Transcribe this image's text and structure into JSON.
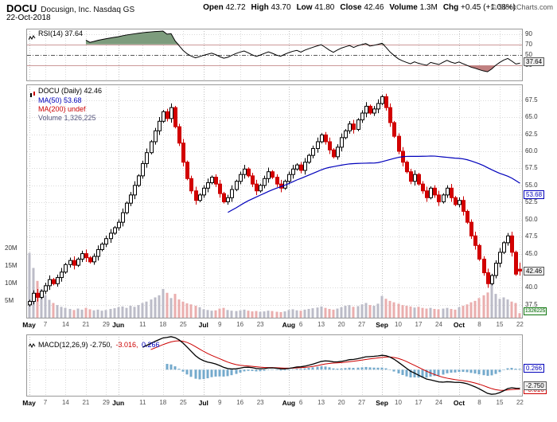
{
  "header": {
    "symbol": "DOCU",
    "company": "Docusign, Inc. Nasdaq GS",
    "date": "22-Oct-2018",
    "credit": "© StockCharts.com",
    "quote": [
      {
        "label": "Open",
        "value": "42.72"
      },
      {
        "label": "High",
        "value": "43.70"
      },
      {
        "label": "Low",
        "value": "41.80"
      },
      {
        "label": "Close",
        "value": "42.46"
      },
      {
        "label": "Volume",
        "value": "1.3M"
      },
      {
        "label": "Chg",
        "value": "+0.45 (+1.08%)"
      }
    ]
  },
  "rsi_panel": {
    "label": "RSI(14) 37.64",
    "ticks": [
      "90",
      "70",
      "50",
      "30"
    ],
    "tick_values": [
      90,
      70,
      50,
      30
    ],
    "tag": {
      "text": "37.64",
      "value": 37.64
    }
  },
  "main_panel": {
    "legend": {
      "symbol_line": "DOCU (Daily) 42.46",
      "ma50": "MA(50) 53.68",
      "ma200": "MA(200) undef",
      "volume": "Volume 1,326,225"
    },
    "price_ticks": [
      "67.5",
      "65.0",
      "62.5",
      "60.0",
      "57.5",
      "55.0",
      "52.5",
      "50.0",
      "47.5",
      "45.0",
      "40.0",
      "37.5"
    ],
    "price_tick_values": [
      67.5,
      65.0,
      62.5,
      60.0,
      57.5,
      55.0,
      52.5,
      50.0,
      47.5,
      45.0,
      40.0,
      37.5
    ],
    "volume_ticks": [
      "20M",
      "15M",
      "10M",
      "5M"
    ],
    "volume_tick_values": [
      20,
      15,
      10,
      5
    ],
    "tags": {
      "ma50": {
        "text": "53.68",
        "value": 53.68
      },
      "close": {
        "text": "42.46",
        "value": 42.46
      },
      "volume": {
        "text": "1326225",
        "value_m": 1.326
      }
    }
  },
  "macd_panel": {
    "label_parts": [
      {
        "text": "MACD(12,26,9) -2.750,",
        "color": "#000000"
      },
      {
        "text": "-3.016,",
        "color": "#cc0000"
      },
      {
        "text": "0.266",
        "color": "#0000bb"
      }
    ],
    "tags": {
      "hist": {
        "text": "0.266",
        "value": 0.266
      },
      "macd": {
        "text": "-2.750",
        "value": -2.75
      },
      "signal": {
        "text": "-3.016",
        "value": -3.016
      }
    }
  },
  "x_axis": {
    "ticks": [
      {
        "label": "May",
        "index": 0,
        "month": true
      },
      {
        "label": "7",
        "index": 4
      },
      {
        "label": "14",
        "index": 9
      },
      {
        "label": "21",
        "index": 14
      },
      {
        "label": "29",
        "index": 19
      },
      {
        "label": "Jun",
        "index": 22,
        "month": true
      },
      {
        "label": "11",
        "index": 28
      },
      {
        "label": "18",
        "index": 33
      },
      {
        "label": "25",
        "index": 38
      },
      {
        "label": "Jul",
        "index": 43,
        "month": true
      },
      {
        "label": "9",
        "index": 47
      },
      {
        "label": "16",
        "index": 52
      },
      {
        "label": "23",
        "index": 57
      },
      {
        "label": "Aug",
        "index": 64,
        "month": true
      },
      {
        "label": "6",
        "index": 67
      },
      {
        "label": "13",
        "index": 72
      },
      {
        "label": "20",
        "index": 77
      },
      {
        "label": "27",
        "index": 82
      },
      {
        "label": "Sep",
        "index": 87,
        "month": true
      },
      {
        "label": "10",
        "index": 91
      },
      {
        "label": "17",
        "index": 96
      },
      {
        "label": "24",
        "index": 101
      },
      {
        "label": "Oct",
        "index": 106,
        "month": true
      },
      {
        "label": "8",
        "index": 111
      },
      {
        "label": "15",
        "index": 116
      },
      {
        "label": "22",
        "index": 121
      }
    ]
  },
  "chart_data": {
    "type": "candlestick",
    "title": "DOCU Docusign, Inc. Nasdaq GS Daily",
    "date_range": "May 2018 - 22 Oct 2018",
    "closes": [
      38.0,
      39.2,
      38.6,
      39.5,
      40.3,
      41.2,
      40.6,
      41.5,
      42.3,
      43.4,
      44.0,
      43.3,
      44.2,
      45.0,
      44.4,
      43.8,
      44.6,
      45.6,
      46.4,
      47.2,
      48.0,
      48.8,
      49.6,
      51.0,
      52.4,
      53.6,
      55.0,
      56.4,
      58.2,
      59.8,
      61.4,
      63.0,
      64.4,
      65.8,
      64.8,
      66.4,
      63.6,
      61.2,
      58.4,
      56.0,
      54.2,
      52.8,
      53.6,
      54.6,
      55.4,
      56.2,
      55.2,
      53.8,
      52.6,
      53.2,
      54.4,
      55.6,
      56.6,
      57.4,
      56.4,
      55.2,
      54.2,
      55.0,
      56.0,
      57.0,
      56.2,
      55.2,
      54.6,
      55.6,
      56.6,
      57.4,
      58.0,
      57.2,
      58.4,
      59.4,
      60.4,
      61.4,
      62.4,
      61.4,
      60.2,
      59.2,
      60.6,
      62.0,
      63.0,
      64.0,
      63.2,
      64.6,
      65.6,
      66.6,
      65.6,
      66.2,
      67.0,
      68.0,
      66.4,
      64.2,
      62.2,
      60.0,
      58.4,
      57.0,
      55.6,
      56.6,
      55.2,
      54.2,
      53.2,
      54.6,
      53.6,
      52.6,
      53.6,
      54.6,
      53.2,
      52.2,
      52.8,
      51.2,
      49.6,
      47.6,
      46.2,
      44.2,
      42.2,
      40.6,
      41.8,
      43.6,
      45.2,
      46.6,
      47.6,
      45.2,
      42.0,
      42.46
    ],
    "volumes_millions": [
      18.5,
      14.2,
      10.5,
      8.2,
      6.4,
      5.1,
      4.2,
      3.6,
      3.1,
      2.8,
      2.5,
      2.2,
      2.6,
      2.3,
      2.8,
      2.4,
      2.1,
      2.3,
      2.0,
      2.2,
      2.5,
      2.7,
      3.0,
      3.2,
      2.8,
      3.4,
      3.1,
      3.6,
      4.2,
      4.6,
      5.2,
      5.8,
      6.4,
      8.2,
      7.1,
      5.6,
      6.8,
      5.2,
      4.6,
      4.1,
      3.8,
      3.4,
      3.0,
      2.4,
      2.2,
      2.0,
      2.1,
      2.6,
      2.8,
      2.2,
      2.0,
      1.9,
      2.1,
      2.3,
      2.0,
      1.8,
      1.9,
      1.7,
      1.8,
      2.0,
      1.9,
      1.7,
      1.6,
      1.8,
      2.2,
      2.4,
      2.1,
      2.0,
      2.3,
      2.5,
      2.7,
      2.9,
      3.2,
      2.8,
      2.5,
      2.3,
      2.6,
      3.0,
      3.4,
      3.6,
      3.1,
      3.3,
      3.8,
      4.2,
      3.6,
      3.4,
      4.0,
      6.2,
      5.4,
      4.8,
      4.4,
      4.0,
      3.6,
      3.4,
      3.2,
      2.9,
      3.1,
      2.8,
      2.6,
      2.8,
      2.5,
      2.4,
      2.6,
      2.8,
      2.5,
      2.3,
      3.0,
      3.4,
      3.8,
      4.4,
      4.8,
      5.6,
      6.4,
      7.2,
      10.2,
      6.8,
      5.4,
      5.8,
      5.2,
      4.6,
      4.2,
      1.3
    ],
    "last_ohlc": {
      "open": 42.72,
      "high": 43.7,
      "low": 41.8,
      "close": 42.46
    },
    "price_axis": {
      "min": 35.5,
      "max": 69.8,
      "tick_step": 2.5
    },
    "volume_axis_max_m": 20,
    "indicators": {
      "rsi": {
        "period": 14,
        "last": 37.64,
        "overbought": 70,
        "oversold": 30,
        "mid": 50
      },
      "ma50": {
        "period": 50,
        "last": 53.68
      },
      "ma200": {
        "period": 200,
        "last": "undef"
      },
      "macd": {
        "fast": 12,
        "slow": 26,
        "signal": 9,
        "last_macd": -2.75,
        "last_signal": -3.016,
        "last_hist": 0.266
      }
    },
    "colors": {
      "up": "#000000",
      "up_fill": "#ffffff",
      "down": "#cc0000",
      "down_fill": "#d40000",
      "ma50": "#0000bb",
      "volume_up": "#bcbcc8",
      "volume_down": "#eaaeae",
      "rsi_line": "#000000",
      "rsi_over_fill": "#7d9c7d",
      "rsi_under_fill": "#c08080",
      "rsi_band_line": "#cc9999",
      "macd_line": "#000000",
      "macd_signal": "#cc0000",
      "macd_hist": "#74aacc",
      "grid": "#d9d9d9",
      "month_grid": "#bfbfbf",
      "panel_border": "#999999"
    },
    "legend_position": "top-left",
    "grid": true
  }
}
